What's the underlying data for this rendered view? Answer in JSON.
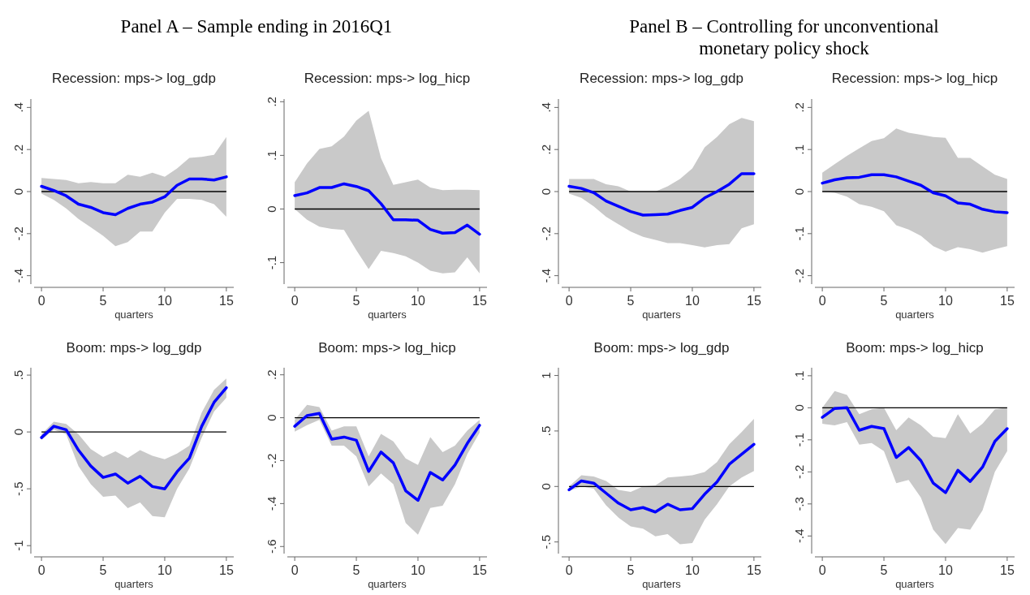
{
  "chart_data": [
    {
      "type": "line",
      "title": "Recession: mps-> log_gdp",
      "xlabel": "quarters",
      "annotations": [
        "Panel A – Sample ending in 2016Q1"
      ],
      "x": [
        0,
        1,
        2,
        3,
        4,
        5,
        6,
        7,
        8,
        9,
        10,
        11,
        12,
        13,
        14,
        15
      ],
      "xlim": [
        -0.6,
        15.6
      ],
      "xticks": [
        0,
        5,
        10,
        15
      ],
      "ylim": [
        -0.44,
        0.44
      ],
      "yticks": [
        {
          "value": -0.4,
          "label": "-.4"
        },
        {
          "value": -0.2,
          "label": "-.2"
        },
        {
          "value": 0,
          "label": "0"
        },
        {
          "value": 0.2,
          "label": ".2"
        },
        {
          "value": 0.4,
          "label": ".4"
        }
      ],
      "grid": false,
      "ref_lines": [
        {
          "axis": "y",
          "value": 0,
          "color": "#000000"
        }
      ],
      "series": [
        {
          "color": "#0000ff",
          "values": [
            0.025,
            0.005,
            -0.02,
            -0.06,
            -0.075,
            -0.1,
            -0.11,
            -0.08,
            -0.06,
            -0.05,
            -0.025,
            0.03,
            0.06,
            0.06,
            0.055,
            0.07
          ],
          "upper": [
            0.065,
            0.06,
            0.055,
            0.04,
            0.045,
            0.04,
            0.04,
            0.08,
            0.07,
            0.09,
            0.07,
            0.11,
            0.16,
            0.165,
            0.175,
            0.26
          ],
          "lower": [
            -0.01,
            -0.04,
            -0.08,
            -0.13,
            -0.17,
            -0.21,
            -0.26,
            -0.24,
            -0.19,
            -0.19,
            -0.1,
            -0.035,
            -0.035,
            -0.04,
            -0.06,
            -0.12
          ]
        }
      ]
    },
    {
      "type": "line",
      "title": "Recession: mps-> log_hicp",
      "xlabel": "quarters",
      "x": [
        0,
        1,
        2,
        3,
        4,
        5,
        6,
        7,
        8,
        9,
        10,
        11,
        12,
        13,
        14,
        15
      ],
      "xlim": [
        -0.6,
        15.6
      ],
      "xticks": [
        0,
        5,
        10,
        15
      ],
      "ylim": [
        -0.14,
        0.205
      ],
      "yticks": [
        {
          "value": -0.1,
          "label": "-.1"
        },
        {
          "value": 0,
          "label": "0"
        },
        {
          "value": 0.1,
          "label": ".1"
        },
        {
          "value": 0.2,
          "label": ".2"
        }
      ],
      "grid": false,
      "ref_lines": [
        {
          "axis": "y",
          "value": 0,
          "color": "#000000"
        }
      ],
      "series": [
        {
          "color": "#0000ff",
          "values": [
            0.025,
            0.03,
            0.04,
            0.04,
            0.047,
            0.042,
            0.034,
            0.01,
            -0.02,
            -0.02,
            -0.021,
            -0.038,
            -0.045,
            -0.044,
            -0.03,
            -0.047
          ],
          "upper": [
            0.05,
            0.085,
            0.112,
            0.117,
            0.135,
            0.165,
            0.183,
            0.095,
            0.045,
            0.05,
            0.055,
            0.04,
            0.035,
            0.036,
            0.036,
            0.035
          ],
          "lower": [
            0,
            -0.02,
            -0.033,
            -0.037,
            -0.039,
            -0.077,
            -0.112,
            -0.078,
            -0.082,
            -0.088,
            -0.1,
            -0.115,
            -0.12,
            -0.118,
            -0.09,
            -0.12
          ]
        }
      ]
    },
    {
      "type": "line",
      "title": "Recession: mps-> log_gdp",
      "xlabel": "quarters",
      "annotations": [
        "Panel B – Controlling for unconventional monetary policy shock"
      ],
      "x": [
        0,
        1,
        2,
        3,
        4,
        5,
        6,
        7,
        8,
        9,
        10,
        11,
        12,
        13,
        14,
        15
      ],
      "xlim": [
        -0.6,
        15.6
      ],
      "xticks": [
        0,
        5,
        10,
        15
      ],
      "ylim": [
        -0.44,
        0.44
      ],
      "yticks": [
        {
          "value": -0.4,
          "label": "-.4"
        },
        {
          "value": -0.2,
          "label": "-.2"
        },
        {
          "value": 0,
          "label": "0"
        },
        {
          "value": 0.2,
          "label": ".2"
        },
        {
          "value": 0.4,
          "label": ".4"
        }
      ],
      "grid": false,
      "ref_lines": [
        {
          "axis": "y",
          "value": 0,
          "color": "#000000"
        }
      ],
      "series": [
        {
          "color": "#0000ff",
          "values": [
            0.025,
            0.015,
            -0.005,
            -0.045,
            -0.07,
            -0.095,
            -0.112,
            -0.11,
            -0.107,
            -0.09,
            -0.075,
            -0.03,
            0,
            0.035,
            0.085,
            0.085
          ],
          "upper": [
            0.06,
            0.06,
            0.06,
            0.035,
            0.025,
            0,
            0,
            0,
            0.025,
            0.06,
            0.11,
            0.21,
            0.26,
            0.32,
            0.35,
            0.335
          ],
          "lower": [
            -0.01,
            -0.03,
            -0.07,
            -0.12,
            -0.155,
            -0.19,
            -0.215,
            -0.23,
            -0.245,
            -0.245,
            -0.255,
            -0.265,
            -0.255,
            -0.25,
            -0.175,
            -0.155
          ]
        }
      ]
    },
    {
      "type": "line",
      "title": "Recession: mps-> log_hicp",
      "xlabel": "quarters",
      "x": [
        0,
        1,
        2,
        3,
        4,
        5,
        6,
        7,
        8,
        9,
        10,
        11,
        12,
        13,
        14,
        15
      ],
      "xlim": [
        -0.6,
        15.6
      ],
      "xticks": [
        0,
        5,
        10,
        15
      ],
      "ylim": [
        -0.22,
        0.22
      ],
      "yticks": [
        {
          "value": -0.2,
          "label": "-.2"
        },
        {
          "value": -0.1,
          "label": "-.1"
        },
        {
          "value": 0,
          "label": "0"
        },
        {
          "value": 0.1,
          "label": ".1"
        },
        {
          "value": 0.2,
          "label": ".2"
        }
      ],
      "grid": false,
      "ref_lines": [
        {
          "axis": "y",
          "value": 0,
          "color": "#000000"
        }
      ],
      "series": [
        {
          "color": "#0000ff",
          "values": [
            0.02,
            0.028,
            0.033,
            0.034,
            0.04,
            0.04,
            0.035,
            0.025,
            0.015,
            -0.003,
            -0.01,
            -0.027,
            -0.03,
            -0.042,
            -0.048,
            -0.05
          ],
          "upper": [
            0.045,
            0.065,
            0.085,
            0.103,
            0.12,
            0.127,
            0.15,
            0.14,
            0.135,
            0.13,
            0.128,
            0.08,
            0.08,
            0.06,
            0.04,
            0.03
          ],
          "lower": [
            0,
            -0.003,
            -0.012,
            -0.03,
            -0.036,
            -0.047,
            -0.08,
            -0.09,
            -0.105,
            -0.13,
            -0.143,
            -0.132,
            -0.137,
            -0.145,
            -0.137,
            -0.13
          ]
        }
      ]
    },
    {
      "type": "line",
      "title": "Boom: mps-> log_gdp",
      "xlabel": "quarters",
      "x": [
        0,
        1,
        2,
        3,
        4,
        5,
        6,
        7,
        8,
        9,
        10,
        11,
        12,
        13,
        14,
        15
      ],
      "xlim": [
        -0.6,
        15.6
      ],
      "xticks": [
        0,
        5,
        10,
        15
      ],
      "ylim": [
        -1.07,
        0.565
      ],
      "yticks": [
        {
          "value": -1,
          "label": "-1"
        },
        {
          "value": -0.5,
          "label": "-.5"
        },
        {
          "value": 0,
          "label": "0"
        },
        {
          "value": 0.5,
          "label": ".5"
        }
      ],
      "grid": false,
      "ref_lines": [
        {
          "axis": "y",
          "value": 0,
          "color": "#000000"
        }
      ],
      "series": [
        {
          "color": "#0000ff",
          "values": [
            -0.05,
            0.05,
            0.02,
            -0.16,
            -0.3,
            -0.4,
            -0.37,
            -0.45,
            -0.39,
            -0.48,
            -0.5,
            -0.35,
            -0.23,
            0.05,
            0.26,
            0.39
          ],
          "upper": [
            -0.02,
            0.09,
            0.07,
            -0.02,
            -0.15,
            -0.22,
            -0.17,
            -0.23,
            -0.16,
            -0.21,
            -0.24,
            -0.19,
            -0.12,
            0.17,
            0.37,
            0.47
          ],
          "lower": [
            -0.07,
            0.02,
            -0.02,
            -0.3,
            -0.46,
            -0.57,
            -0.56,
            -0.67,
            -0.62,
            -0.74,
            -0.75,
            -0.5,
            -0.32,
            -0.05,
            0.18,
            0.3
          ]
        }
      ]
    },
    {
      "type": "line",
      "title": "Boom: mps-> log_hicp",
      "xlabel": "quarters",
      "x": [
        0,
        1,
        2,
        3,
        4,
        5,
        6,
        7,
        8,
        9,
        10,
        11,
        12,
        13,
        14,
        15
      ],
      "xlim": [
        -0.6,
        15.6
      ],
      "xticks": [
        0,
        5,
        10,
        15
      ],
      "ylim": [
        -0.633,
        0.233
      ],
      "yticks": [
        {
          "value": -0.6,
          "label": "-.6"
        },
        {
          "value": -0.4,
          "label": "-.4"
        },
        {
          "value": -0.2,
          "label": "-.2"
        },
        {
          "value": 0,
          "label": "0"
        },
        {
          "value": 0.2,
          "label": ".2"
        }
      ],
      "grid": false,
      "ref_lines": [
        {
          "axis": "y",
          "value": 0,
          "color": "#000000"
        }
      ],
      "series": [
        {
          "color": "#0000ff",
          "values": [
            -0.04,
            0.01,
            0.02,
            -0.1,
            -0.09,
            -0.105,
            -0.25,
            -0.16,
            -0.21,
            -0.34,
            -0.385,
            -0.255,
            -0.29,
            -0.22,
            -0.12,
            -0.035
          ],
          "upper": [
            -0.01,
            0.06,
            0.05,
            -0.06,
            -0.04,
            -0.04,
            -0.18,
            -0.075,
            -0.11,
            -0.19,
            -0.22,
            -0.09,
            -0.16,
            -0.13,
            -0.06,
            -0.01
          ],
          "lower": [
            -0.065,
            -0.035,
            -0.01,
            -0.13,
            -0.13,
            -0.18,
            -0.32,
            -0.26,
            -0.31,
            -0.49,
            -0.545,
            -0.42,
            -0.41,
            -0.31,
            -0.17,
            -0.07
          ]
        }
      ]
    },
    {
      "type": "line",
      "title": "Boom: mps-> log_gdp",
      "xlabel": "quarters",
      "x": [
        0,
        1,
        2,
        3,
        4,
        5,
        6,
        7,
        8,
        9,
        10,
        11,
        12,
        13,
        14,
        15
      ],
      "xlim": [
        -0.6,
        15.6
      ],
      "xticks": [
        0,
        5,
        10,
        15
      ],
      "ylim": [
        -0.605,
        1.07
      ],
      "yticks": [
        {
          "value": -0.5,
          "label": "-.5"
        },
        {
          "value": 0,
          "label": "0"
        },
        {
          "value": 0.5,
          "label": ".5"
        },
        1
      ],
      "grid": false,
      "ref_lines": [
        {
          "axis": "y",
          "value": 0,
          "color": "#000000"
        }
      ],
      "series": [
        {
          "color": "#0000ff",
          "values": [
            -0.03,
            0.05,
            0.03,
            -0.06,
            -0.15,
            -0.21,
            -0.19,
            -0.23,
            -0.16,
            -0.21,
            -0.2,
            -0.07,
            0.04,
            0.2,
            0.29,
            0.38
          ],
          "upper": [
            0,
            0.1,
            0.09,
            0.05,
            -0.03,
            -0.05,
            0,
            0.01,
            0.08,
            0.09,
            0.1,
            0.13,
            0.22,
            0.38,
            0.49,
            0.61
          ],
          "lower": [
            -0.04,
            0,
            -0.02,
            -0.17,
            -0.28,
            -0.36,
            -0.38,
            -0.45,
            -0.43,
            -0.52,
            -0.51,
            -0.3,
            -0.16,
            0,
            0.08,
            0.14
          ]
        }
      ]
    },
    {
      "type": "line",
      "title": "Boom: mps-> log_hicp",
      "xlabel": "quarters",
      "x": [
        0,
        1,
        2,
        3,
        4,
        5,
        6,
        7,
        8,
        9,
        10,
        11,
        12,
        13,
        14,
        15
      ],
      "xlim": [
        -0.6,
        15.6
      ],
      "xticks": [
        0,
        5,
        10,
        15
      ],
      "ylim": [
        -0.455,
        0.125
      ],
      "yticks": [
        {
          "value": -0.4,
          "label": "-.4"
        },
        {
          "value": -0.3,
          "label": "-.3"
        },
        {
          "value": -0.2,
          "label": "-.2"
        },
        {
          "value": -0.1,
          "label": "-.1"
        },
        {
          "value": 0,
          "label": "0"
        },
        {
          "value": 0.1,
          "label": ".1"
        }
      ],
      "grid": false,
      "ref_lines": [
        {
          "axis": "y",
          "value": 0,
          "color": "#000000"
        }
      ],
      "series": [
        {
          "color": "#0000ff",
          "values": [
            -0.03,
            -0.002,
            0,
            -0.07,
            -0.058,
            -0.065,
            -0.155,
            -0.124,
            -0.165,
            -0.235,
            -0.265,
            -0.195,
            -0.23,
            -0.185,
            -0.105,
            -0.065
          ],
          "upper": [
            0,
            0.052,
            0.04,
            -0.02,
            -0.005,
            0,
            -0.07,
            -0.03,
            -0.055,
            -0.09,
            -0.095,
            -0.02,
            -0.08,
            -0.05,
            -0.005,
            0
          ],
          "lower": [
            -0.05,
            -0.055,
            -0.045,
            -0.115,
            -0.11,
            -0.135,
            -0.235,
            -0.225,
            -0.28,
            -0.38,
            -0.425,
            -0.375,
            -0.38,
            -0.32,
            -0.2,
            -0.135
          ]
        }
      ]
    }
  ]
}
